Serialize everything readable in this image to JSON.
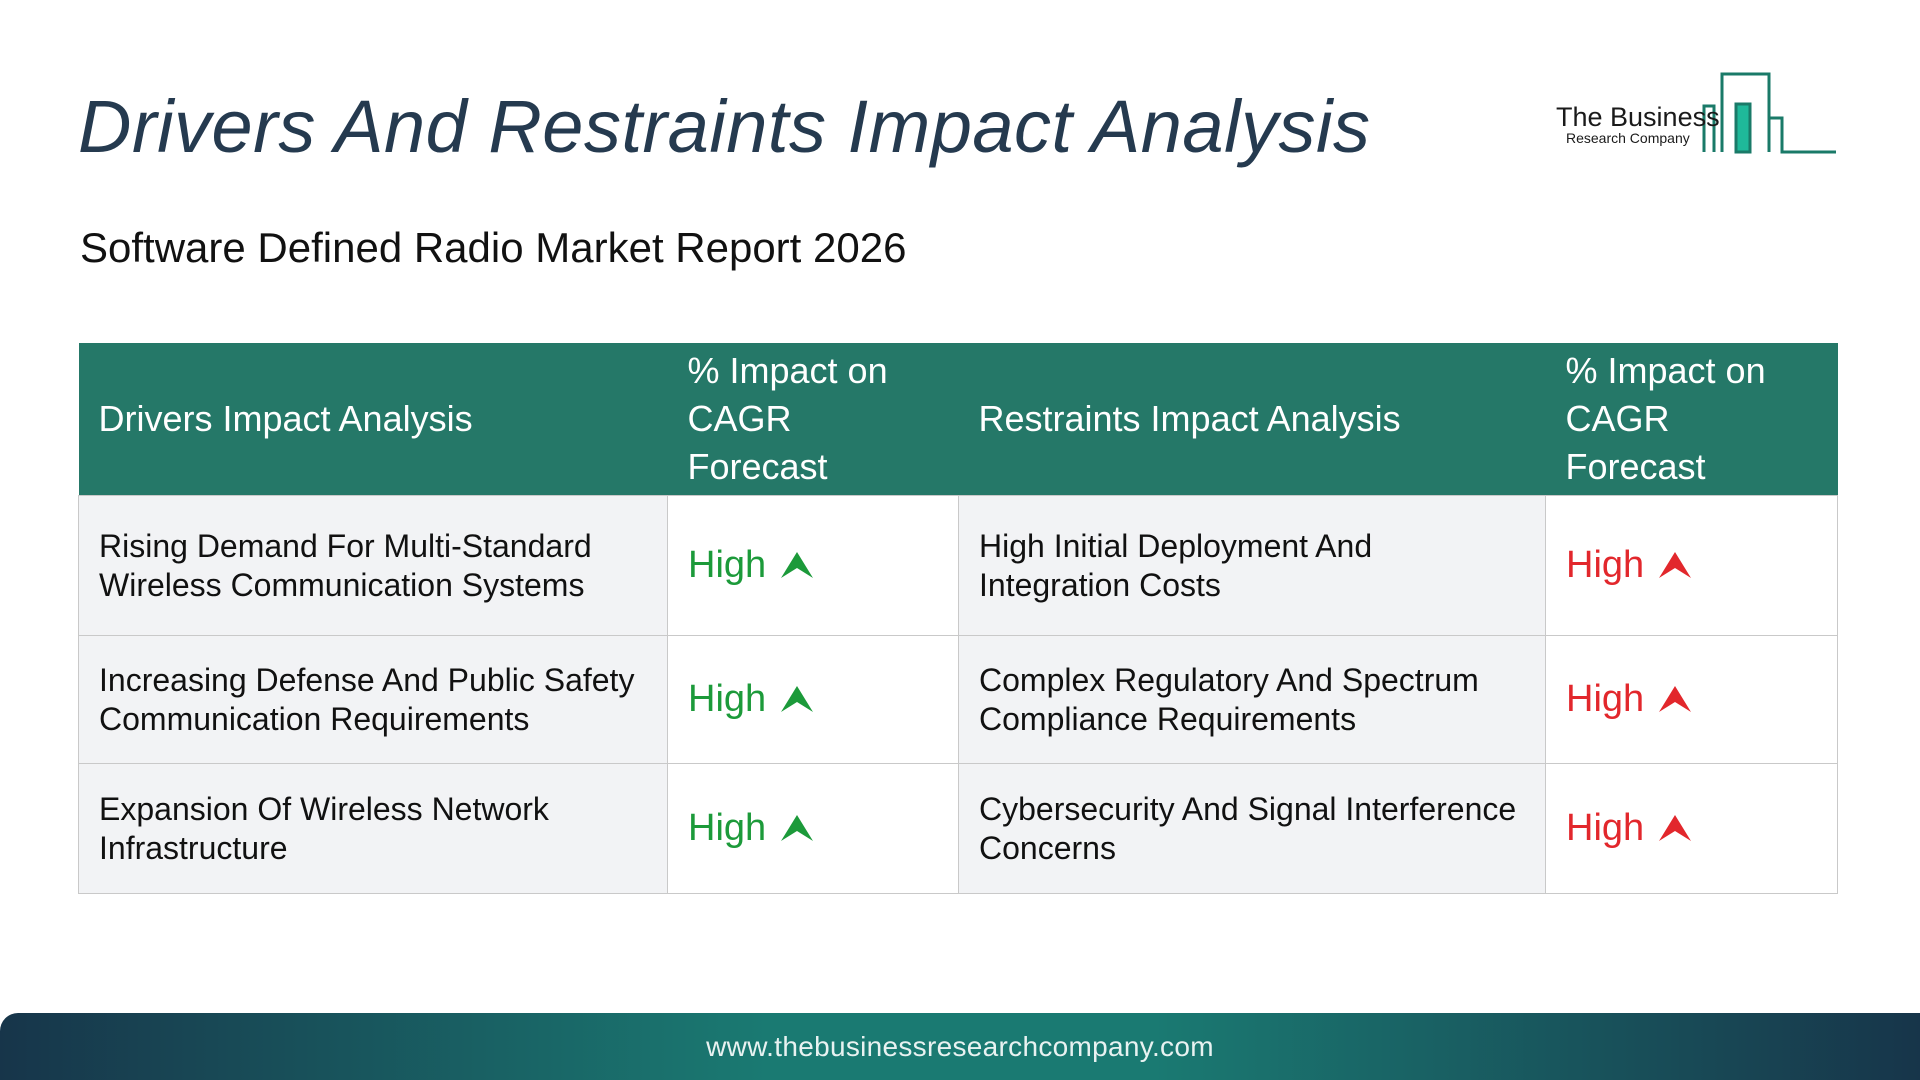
{
  "header": {
    "title": "Drivers And Restraints Impact Analysis",
    "subtitle": "Software Defined Radio Market Report 2026"
  },
  "logo": {
    "name": "The Business",
    "sub": "Research Company",
    "color": "#1a7a68"
  },
  "table": {
    "headers": {
      "drivers": "Drivers Impact Analysis",
      "drivers_impact_line1": "% Impact on",
      "drivers_impact_line2": "CAGR Forecast",
      "restraints": "Restraints Impact Analysis",
      "restraints_impact_line1": "% Impact on",
      "restraints_impact_line2": "CAGR Forecast"
    },
    "rows": [
      {
        "driver": "Rising Demand For Multi-Standard Wireless Communication Systems",
        "driver_impact": "High",
        "restraint": "High Initial Deployment And Integration Costs",
        "restraint_impact": "High"
      },
      {
        "driver": "Increasing Defense And Public Safety Communication Requirements",
        "driver_impact": "High",
        "restraint": "Complex Regulatory And Spectrum Compliance Requirements",
        "restraint_impact": "High"
      },
      {
        "driver": "Expansion Of Wireless Network Infrastructure",
        "driver_impact": "High",
        "restraint": "Cybersecurity And Signal Interference Concerns",
        "restraint_impact": "High"
      }
    ],
    "colors": {
      "header_bg": "#257868",
      "driver_impact": "#1c9a3a",
      "restraint_impact": "#e2272c"
    },
    "icons": {
      "driver_impact": "green-up-arrow-icon",
      "restraint_impact": "red-up-arrow-icon"
    }
  },
  "footer": {
    "url": "www.thebusinessresearchcompany.com"
  }
}
